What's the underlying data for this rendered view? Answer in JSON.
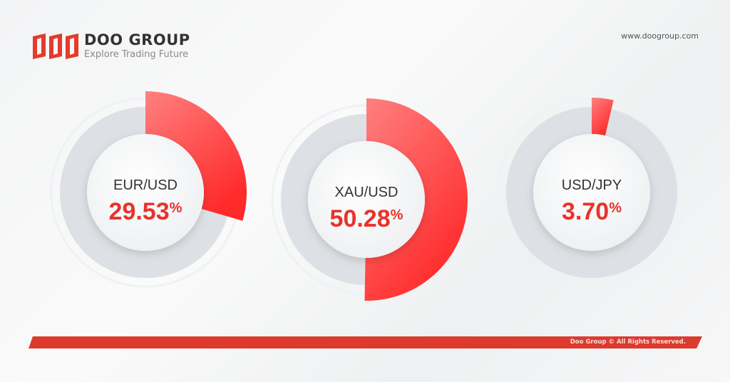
{
  "header": {
    "brand": "DOO GROUP",
    "tagline": "Explore Trading Future",
    "logo_text": "DOO",
    "website": "www.doogroup.com"
  },
  "footer": {
    "copyright": "Doo Group © All Rights Reserved."
  },
  "colors": {
    "accent": "#ff2e2e",
    "ring": "#dde1e5",
    "footer": "#dd3a2e"
  },
  "chart_data": [
    {
      "type": "pie",
      "label": "EUR/USD",
      "value": 29.53,
      "value_text": "29.53",
      "unit": "%"
    },
    {
      "type": "pie",
      "label": "XAU/USD",
      "value": 50.28,
      "value_text": "50.28",
      "unit": "%"
    },
    {
      "type": "pie",
      "label": "USD/JPY",
      "value": 3.7,
      "value_text": "3.70",
      "unit": "%"
    }
  ]
}
